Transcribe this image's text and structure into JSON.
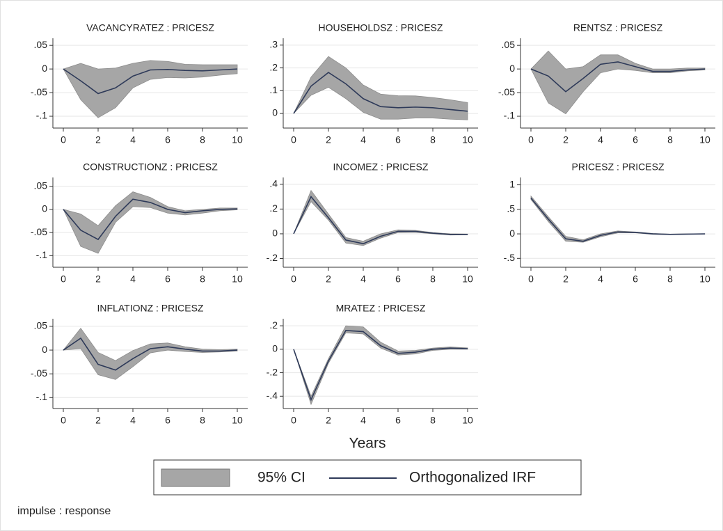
{
  "chart_data": [
    {
      "type": "line",
      "title": "VACANCYRATEZ : PRICESZ",
      "x": [
        0,
        1,
        2,
        3,
        4,
        5,
        6,
        7,
        8,
        9,
        10
      ],
      "xlim": [
        -0.6,
        10.6
      ],
      "xticks": [
        0,
        2,
        4,
        6,
        8,
        10
      ],
      "ylim": [
        -0.125,
        0.065
      ],
      "yticks": [
        {
          "value": 0.05,
          "label": ".05"
        },
        0,
        {
          "value": -0.05,
          "label": "-.05"
        },
        {
          "value": -0.1,
          "label": "-.1"
        }
      ],
      "irf": [
        0,
        -0.025,
        -0.052,
        -0.04,
        -0.015,
        -0.002,
        -0.001,
        -0.003,
        -0.004,
        -0.002,
        0
      ],
      "ci_lower": [
        0,
        -0.065,
        -0.103,
        -0.082,
        -0.04,
        -0.022,
        -0.018,
        -0.019,
        -0.017,
        -0.013,
        -0.01
      ],
      "ci_upper": [
        0,
        0.012,
        0,
        0.002,
        0.012,
        0.018,
        0.016,
        0.01,
        0.009,
        0.009,
        0.009
      ]
    },
    {
      "type": "line",
      "title": "HOUSEHOLDSZ : PRICESZ",
      "x": [
        0,
        1,
        2,
        3,
        4,
        5,
        6,
        7,
        8,
        9,
        10
      ],
      "xlim": [
        -0.6,
        10.6
      ],
      "xticks": [
        0,
        2,
        4,
        6,
        8,
        10
      ],
      "ylim": [
        -0.064,
        0.33
      ],
      "yticks": [
        {
          "value": 0.3,
          "label": ".3"
        },
        {
          "value": 0.2,
          "label": ".2"
        },
        {
          "value": 0.1,
          "label": ".1"
        },
        0
      ],
      "irf": [
        0,
        0.12,
        0.18,
        0.13,
        0.065,
        0.03,
        0.025,
        0.028,
        0.025,
        0.017,
        0.01
      ],
      "ci_lower": [
        0,
        0.08,
        0.115,
        0.065,
        0.005,
        -0.025,
        -0.025,
        -0.02,
        -0.02,
        -0.025,
        -0.028
      ],
      "ci_upper": [
        0,
        0.16,
        0.25,
        0.2,
        0.125,
        0.085,
        0.078,
        0.077,
        0.07,
        0.06,
        0.048
      ]
    },
    {
      "type": "line",
      "title": "RENTSZ : PRICESZ",
      "x": [
        0,
        1,
        2,
        3,
        4,
        5,
        6,
        7,
        8,
        9,
        10
      ],
      "xlim": [
        -0.6,
        10.6
      ],
      "xticks": [
        0,
        2,
        4,
        6,
        8,
        10
      ],
      "ylim": [
        -0.125,
        0.065
      ],
      "yticks": [
        {
          "value": 0.05,
          "label": ".05"
        },
        0,
        {
          "value": -0.05,
          "label": "-.05"
        },
        {
          "value": -0.1,
          "label": "-.1"
        }
      ],
      "irf": [
        0,
        -0.015,
        -0.048,
        -0.02,
        0.01,
        0.015,
        0.005,
        -0.005,
        -0.005,
        -0.002,
        0
      ],
      "ci_lower": [
        0,
        -0.072,
        -0.095,
        -0.048,
        -0.008,
        0,
        -0.003,
        -0.008,
        -0.008,
        -0.004,
        -0.002
      ],
      "ci_upper": [
        0,
        0.038,
        0,
        0.005,
        0.03,
        0.03,
        0.012,
        0,
        0,
        0.002,
        0.002
      ]
    },
    {
      "type": "line",
      "title": "CONSTRUCTIONZ : PRICESZ",
      "x": [
        0,
        1,
        2,
        3,
        4,
        5,
        6,
        7,
        8,
        9,
        10
      ],
      "xlim": [
        -0.6,
        10.6
      ],
      "xticks": [
        0,
        2,
        4,
        6,
        8,
        10
      ],
      "ylim": [
        -0.125,
        0.069
      ],
      "yticks": [
        {
          "value": 0.05,
          "label": ".05"
        },
        0,
        {
          "value": -0.05,
          "label": "-.05"
        },
        {
          "value": -0.1,
          "label": "-.1"
        }
      ],
      "irf": [
        0,
        -0.045,
        -0.065,
        -0.015,
        0.022,
        0.015,
        0,
        -0.007,
        -0.003,
        0,
        0.001
      ],
      "ci_lower": [
        0,
        -0.08,
        -0.095,
        -0.028,
        0.006,
        0.004,
        -0.008,
        -0.012,
        -0.008,
        -0.003,
        -0.001
      ],
      "ci_upper": [
        0,
        -0.01,
        -0.035,
        0.008,
        0.038,
        0.026,
        0.006,
        -0.003,
        0,
        0.003,
        0.003
      ]
    },
    {
      "type": "line",
      "title": "INCOMEZ : PRICESZ",
      "x": [
        0,
        1,
        2,
        3,
        4,
        5,
        6,
        7,
        8,
        9,
        10
      ],
      "xlim": [
        -0.6,
        10.6
      ],
      "xticks": [
        0,
        2,
        4,
        6,
        8,
        10
      ],
      "ylim": [
        -0.27,
        0.455
      ],
      "yticks": [
        {
          "value": 0.4,
          "label": ".4"
        },
        {
          "value": 0.2,
          "label": ".2"
        },
        0,
        {
          "value": -0.2,
          "label": "-.2"
        }
      ],
      "irf": [
        0,
        0.3,
        0.13,
        -0.05,
        -0.08,
        -0.02,
        0.02,
        0.02,
        0.005,
        -0.005,
        -0.005
      ],
      "ci_lower": [
        0,
        0.26,
        0.11,
        -0.075,
        -0.095,
        -0.035,
        0.01,
        0.012,
        0,
        -0.01,
        -0.008
      ],
      "ci_upper": [
        0,
        0.35,
        0.16,
        -0.03,
        -0.06,
        0,
        0.032,
        0.028,
        0.01,
        0,
        -0.002
      ]
    },
    {
      "type": "line",
      "title": "PRICESZ : PRICESZ",
      "x": [
        0,
        1,
        2,
        3,
        4,
        5,
        6,
        7,
        8,
        9,
        10
      ],
      "xlim": [
        -0.6,
        10.6
      ],
      "xticks": [
        0,
        2,
        4,
        6,
        8,
        10
      ],
      "ylim": [
        -0.68,
        1.15
      ],
      "yticks": [
        1,
        {
          "value": 0.5,
          "label": ".5"
        },
        0,
        {
          "value": -0.5,
          "label": "-.5"
        }
      ],
      "irf": [
        0.73,
        0.3,
        -0.1,
        -0.15,
        -0.03,
        0.04,
        0.03,
        0,
        -0.01,
        -0.005,
        0
      ],
      "ci_lower": [
        0.7,
        0.25,
        -0.15,
        -0.17,
        -0.06,
        0.02,
        0.02,
        -0.01,
        -0.015,
        -0.008,
        -0.003
      ],
      "ci_upper": [
        0.77,
        0.35,
        -0.05,
        -0.12,
        0,
        0.06,
        0.04,
        0.01,
        -0.005,
        0,
        0.003
      ]
    },
    {
      "type": "line",
      "title": "INFLATIONZ : PRICESZ",
      "x": [
        0,
        1,
        2,
        3,
        4,
        5,
        6,
        7,
        8,
        9,
        10
      ],
      "xlim": [
        -0.6,
        10.6
      ],
      "xticks": [
        0,
        2,
        4,
        6,
        8,
        10
      ],
      "ylim": [
        -0.123,
        0.066
      ],
      "yticks": [
        {
          "value": 0.05,
          "label": ".05"
        },
        0,
        {
          "value": -0.05,
          "label": "-.05"
        },
        {
          "value": -0.1,
          "label": "-.1"
        }
      ],
      "irf": [
        0,
        0.025,
        -0.03,
        -0.042,
        -0.018,
        0.003,
        0.007,
        0.002,
        -0.002,
        -0.002,
        0
      ],
      "ci_lower": [
        0,
        0.003,
        -0.052,
        -0.062,
        -0.035,
        -0.006,
        0,
        -0.003,
        -0.005,
        -0.004,
        -0.002
      ],
      "ci_upper": [
        0,
        0.046,
        -0.005,
        -0.022,
        -0.001,
        0.013,
        0.015,
        0.007,
        0.002,
        0.001,
        0.002
      ]
    },
    {
      "type": "line",
      "title": "MRATEZ : PRICESZ",
      "x": [
        0,
        1,
        2,
        3,
        4,
        5,
        6,
        7,
        8,
        9,
        10
      ],
      "xlim": [
        -0.6,
        10.6
      ],
      "xticks": [
        0,
        2,
        4,
        6,
        8,
        10
      ],
      "ylim": [
        -0.505,
        0.26
      ],
      "yticks": [
        {
          "value": 0.2,
          "label": ".2"
        },
        0,
        {
          "value": -0.2,
          "label": "-.2"
        },
        {
          "value": -0.4,
          "label": "-.4"
        }
      ],
      "irf": [
        0,
        -0.43,
        -0.1,
        0.16,
        0.15,
        0.03,
        -0.035,
        -0.025,
        0,
        0.01,
        0.005
      ],
      "ci_lower": [
        0,
        -0.47,
        -0.12,
        0.14,
        0.13,
        0.01,
        -0.05,
        -0.04,
        -0.01,
        0,
        0
      ],
      "ci_upper": [
        0,
        -0.4,
        -0.08,
        0.2,
        0.19,
        0.06,
        -0.015,
        -0.01,
        0.01,
        0.02,
        0.012
      ]
    }
  ],
  "xlabel": "Years",
  "legend": {
    "ci": {
      "name": "95% CI",
      "color": "#a6a6a6"
    },
    "irf": {
      "name": "Orthogonalized IRF",
      "color": "#2e3a59"
    }
  },
  "note": "impulse : response"
}
